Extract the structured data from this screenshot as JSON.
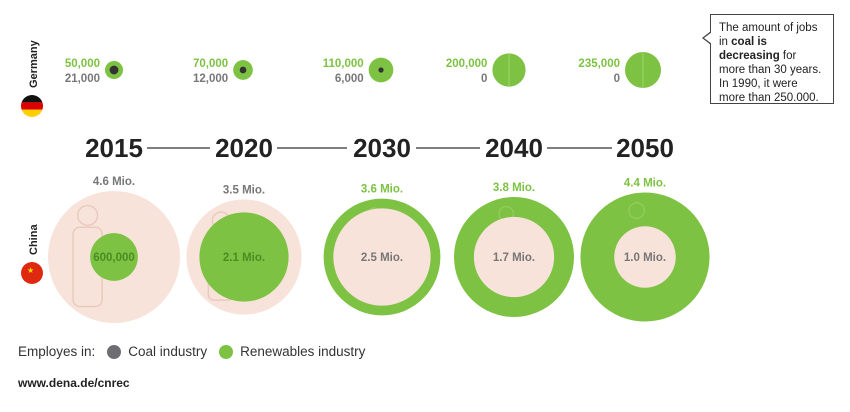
{
  "chart_data": {
    "type": "bubble-timeline",
    "years": [
      "2015",
      "2020",
      "2030",
      "2040",
      "2050"
    ],
    "countries": [
      {
        "name": "Germany",
        "coal_jobs": [
          "21,000",
          "12,000",
          "6,000",
          "0",
          "0"
        ],
        "renewables_jobs": [
          "50,000",
          "70,000",
          "110,000",
          "200,000",
          "235,000"
        ],
        "coal_values": [
          21000,
          12000,
          6000,
          0,
          0
        ],
        "renewables_values": [
          50000,
          70000,
          110000,
          200000,
          235000
        ]
      },
      {
        "name": "China",
        "coal_jobs": [
          "4.6 Mio.",
          "3.5 Mio.",
          "2.5 Mio.",
          "1.7 Mio.",
          "1.0 Mio."
        ],
        "renewables_jobs": [
          "600,000",
          "2.1 Mio.",
          "3.6 Mio.",
          "3.8 Mio.",
          "4.4 Mio."
        ],
        "coal_values": [
          4600000,
          3500000,
          2500000,
          1700000,
          1000000
        ],
        "renewables_values": [
          600000,
          2100000,
          3600000,
          3800000,
          4400000
        ]
      }
    ]
  },
  "callout": {
    "text_before": "The amount of jobs in ",
    "text_bold": "coal is decreasing",
    "text_after": " for more than 30 years. In 1990, it were more than 250.000."
  },
  "legend": {
    "title": "Employes in:",
    "coal_label": "Coal industry",
    "renewables_label": "Renewables industry"
  },
  "source": "www.dena.de/cnrec",
  "colors": {
    "coal": "#6d6e71",
    "renewables": "#7dc243",
    "china_coal_fill": "#f8e3da",
    "line": "#333333",
    "year_text": "#222222",
    "label_gray": "#777777"
  }
}
